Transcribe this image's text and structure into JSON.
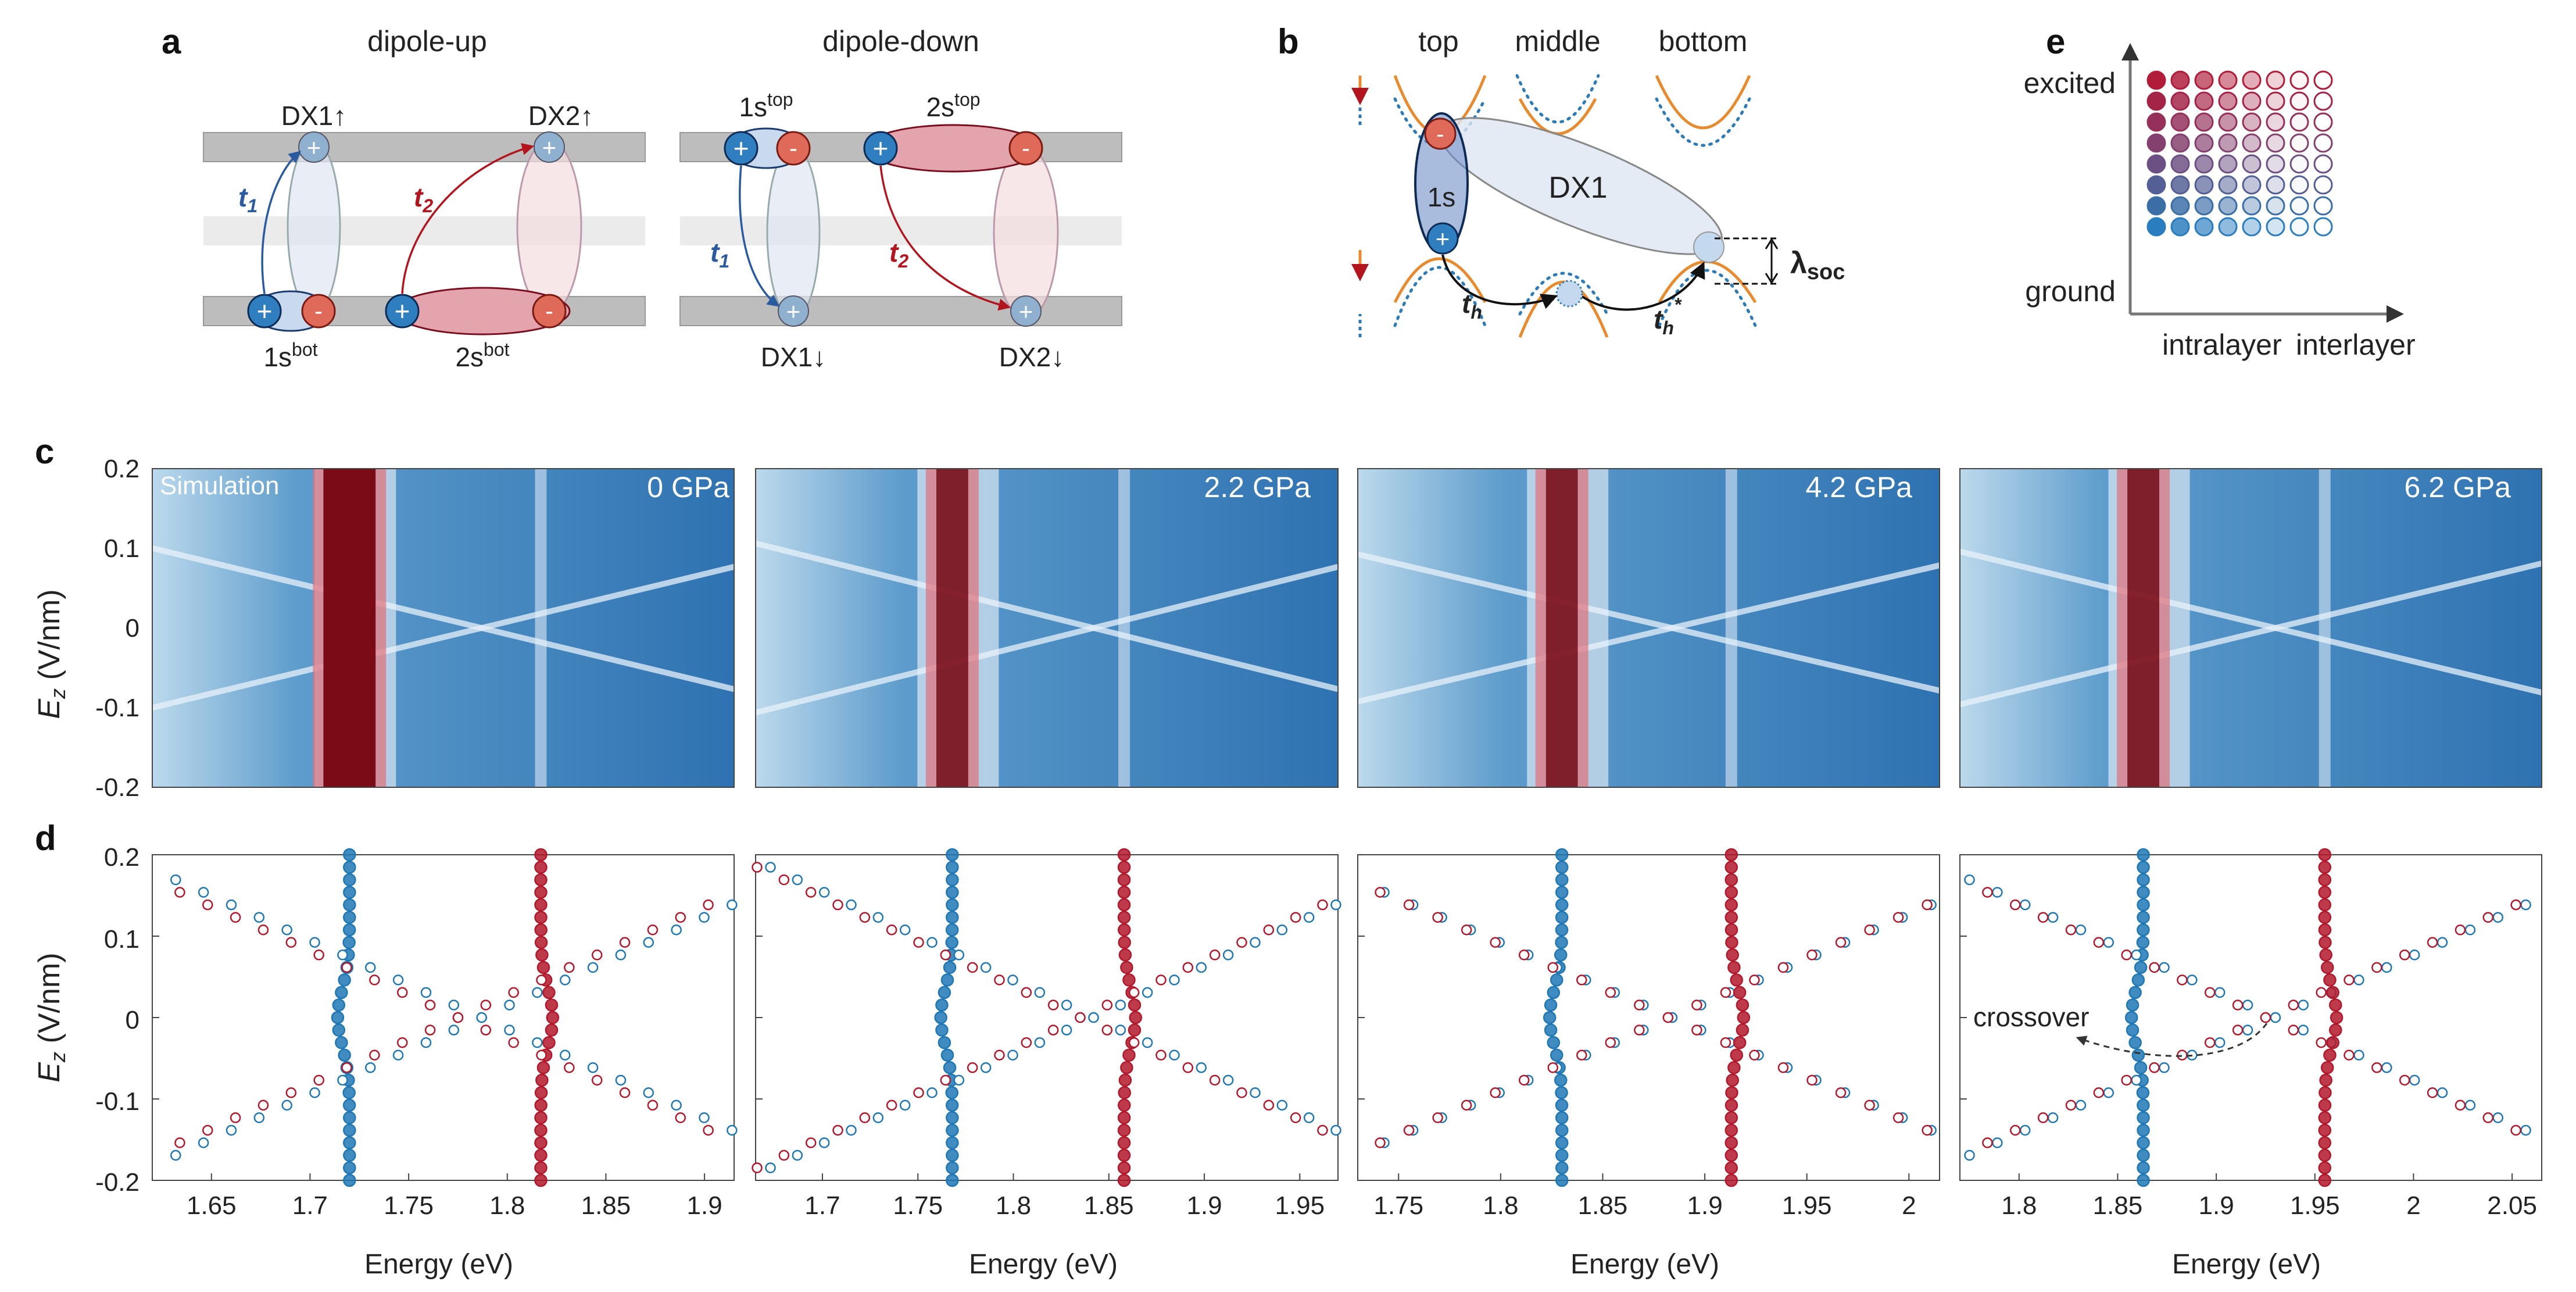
{
  "figure": {
    "panel_labels": [
      "a",
      "b",
      "c",
      "d",
      "e"
    ],
    "panel_a": {
      "left_title": "dipole-up",
      "right_title": "dipole-down",
      "left": {
        "dx1": "DX1",
        "dx2": "DX2",
        "arrow": "↑",
        "s1": "1s",
        "s2": "2s",
        "sup": "bot",
        "t1": "t",
        "t2": "t",
        "sub1": "1",
        "sub2": "2"
      },
      "right": {
        "dx1": "DX1",
        "dx2": "DX2",
        "arrow": "↓",
        "s1": "1s",
        "s2": "2s",
        "sup": "top",
        "t1": "t",
        "t2": "t",
        "sub1": "1",
        "sub2": "2"
      },
      "plus": "+",
      "minus": "-",
      "colors": {
        "blue": "#1f6fb2",
        "red": "#c0303a",
        "layer": "#bdbdbd",
        "mid": "#e8e8e8"
      }
    },
    "panel_b": {
      "columns": [
        "top",
        "middle",
        "bottom"
      ],
      "exciton": "1s",
      "dx": "DX1",
      "hop": "t",
      "hop_sub": "h",
      "hop_star": "*",
      "soc": "λ",
      "soc_sub": "soc",
      "colors": {
        "orange": "#e88a2e",
        "blue": "#2c7bb6"
      }
    },
    "panel_e": {
      "y_top": "excited",
      "y_bottom": "ground",
      "x_left": "intralayer",
      "x_right": "interlayer",
      "rows": 8,
      "cols": 8,
      "row_colors": [
        "#b01c3a",
        "#a32447",
        "#94305a",
        "#84406e",
        "#6c5083",
        "#535f95",
        "#3c6ea6",
        "#2a7dbf"
      ]
    },
    "panel_c": {
      "ylabel": "E",
      "ylabel_sub": "z",
      "ylabel_unit": " (V/nm)",
      "yticks": [
        "0.2",
        "0.1",
        "0",
        "-0.1",
        "-0.2"
      ],
      "simulation_label": "Simulation",
      "panels": [
        {
          "pressure": "0 GPa"
        },
        {
          "pressure": "2.2 GPa"
        },
        {
          "pressure": "4.2 GPa"
        },
        {
          "pressure": "6.2 GPa"
        }
      ]
    },
    "panel_d": {
      "ylabel": "E",
      "ylabel_sub": "z",
      "ylabel_unit": " (V/nm)",
      "xlabel": "Energy (eV)",
      "yticks": [
        "0.2",
        "0.1",
        "0",
        "-0.1",
        "-0.2"
      ],
      "annotation": "crossover",
      "panels": [
        {
          "xticks": [
            "1.65",
            "1.7",
            "1.75",
            "1.8",
            "1.85",
            "1.9"
          ]
        },
        {
          "xticks": [
            "1.7",
            "1.75",
            "1.8",
            "1.85",
            "1.9",
            "1.95"
          ]
        },
        {
          "xticks": [
            "1.75",
            "1.8",
            "1.85",
            "1.9",
            "1.95",
            "2"
          ]
        },
        {
          "xticks": [
            "1.8",
            "1.85",
            "1.9",
            "1.95",
            "2",
            "2.05"
          ]
        }
      ]
    }
  },
  "chart_data": [
    {
      "type": "scatter",
      "title": "0 GPa",
      "xlabel": "Energy (eV)",
      "ylabel": "Ez (V/nm)",
      "xlim": [
        1.62,
        1.915
      ],
      "ylim": [
        -0.2,
        0.2
      ],
      "series": [
        {
          "name": "blue intralayer",
          "color": "#1f77b4",
          "center": 1.72,
          "slope": 0,
          "fill": true
        },
        {
          "name": "blue interlayer +",
          "color": "#1f77b4",
          "center": 1.787,
          "slope": 0.6,
          "fill": false
        },
        {
          "name": "blue interlayer -",
          "color": "#1f77b4",
          "center": 1.787,
          "slope": -0.6,
          "fill": false
        },
        {
          "name": "red intralayer",
          "color": "#b2182b",
          "center": 1.817,
          "slope": 0,
          "fill": true
        },
        {
          "name": "red interlayer +",
          "color": "#b2182b",
          "center": 1.775,
          "slope": 0.6,
          "fill": false
        },
        {
          "name": "red interlayer -",
          "color": "#b2182b",
          "center": 1.775,
          "slope": -0.6,
          "fill": false
        }
      ]
    },
    {
      "type": "scatter",
      "title": "2.2 GPa",
      "xlabel": "Energy (eV)",
      "ylabel": "Ez (V/nm)",
      "xlim": [
        1.665,
        1.97
      ],
      "ylim": [
        -0.2,
        0.2
      ],
      "series": [
        {
          "name": "blue intralayer",
          "color": "#1f77b4",
          "center": 1.768,
          "slope": 0,
          "fill": true
        },
        {
          "name": "blue interlayer +",
          "color": "#1f77b4",
          "center": 1.842,
          "slope": 0.6,
          "fill": false
        },
        {
          "name": "blue interlayer -",
          "color": "#1f77b4",
          "center": 1.842,
          "slope": -0.6,
          "fill": false
        },
        {
          "name": "red intralayer",
          "color": "#b2182b",
          "center": 1.858,
          "slope": 0,
          "fill": true
        },
        {
          "name": "red interlayer +",
          "color": "#b2182b",
          "center": 1.835,
          "slope": 0.6,
          "fill": false
        },
        {
          "name": "red interlayer -",
          "color": "#b2182b",
          "center": 1.835,
          "slope": -0.6,
          "fill": false
        }
      ]
    },
    {
      "type": "scatter",
      "title": "4.2 GPa",
      "xlabel": "Energy (eV)",
      "ylabel": "Ez (V/nm)",
      "xlim": [
        1.73,
        2.015
      ],
      "ylim": [
        -0.2,
        0.2
      ],
      "series": [
        {
          "name": "blue intralayer",
          "color": "#1f77b4",
          "center": 1.83,
          "slope": 0,
          "fill": true
        },
        {
          "name": "blue interlayer +",
          "color": "#1f77b4",
          "center": 1.884,
          "slope": 0.6,
          "fill": false
        },
        {
          "name": "blue interlayer -",
          "color": "#1f77b4",
          "center": 1.884,
          "slope": -0.6,
          "fill": false
        },
        {
          "name": "red intralayer",
          "color": "#b2182b",
          "center": 1.913,
          "slope": 0,
          "fill": true
        },
        {
          "name": "red interlayer +",
          "color": "#b2182b",
          "center": 1.882,
          "slope": 0.6,
          "fill": false
        },
        {
          "name": "red interlayer -",
          "color": "#b2182b",
          "center": 1.882,
          "slope": -0.6,
          "fill": false
        }
      ]
    },
    {
      "type": "scatter",
      "title": "6.2 GPa",
      "xlabel": "Energy (eV)",
      "ylabel": "Ez (V/nm)",
      "xlim": [
        1.77,
        2.065
      ],
      "ylim": [
        -0.2,
        0.2
      ],
      "series": [
        {
          "name": "blue intralayer",
          "color": "#1f77b4",
          "center": 1.863,
          "slope": 0,
          "fill": true
        },
        {
          "name": "blue interlayer +",
          "color": "#1f77b4",
          "center": 1.93,
          "slope": 0.6,
          "fill": false
        },
        {
          "name": "blue interlayer -",
          "color": "#1f77b4",
          "center": 1.93,
          "slope": -0.6,
          "fill": false
        },
        {
          "name": "red intralayer",
          "color": "#b2182b",
          "center": 1.955,
          "slope": 0,
          "fill": true
        },
        {
          "name": "red interlayer +",
          "color": "#b2182b",
          "center": 1.925,
          "slope": 0.6,
          "fill": false
        },
        {
          "name": "red interlayer -",
          "color": "#b2182b",
          "center": 1.925,
          "slope": -0.6,
          "fill": false
        }
      ]
    }
  ]
}
